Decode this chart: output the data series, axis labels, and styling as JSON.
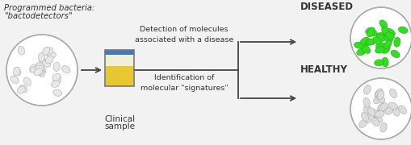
{
  "bg_color": "#f2f2f2",
  "title_line1": "Programmed bacteria:",
  "title_line2": "\"bactodetectors\"",
  "clinical_label1": "Clinical",
  "clinical_label2": "sample",
  "text_upper": "Detection of molecules\nassociated with a disease",
  "text_lower": "Identification of\nmolecular \"signatures\"",
  "label_diseased": "DISEASED",
  "label_healthy": "HEALTHY",
  "arrow_color": "#444444",
  "text_color": "#333333",
  "diseased_color": "#33dd22",
  "healthy_color": "#dddddd",
  "bacteria_color": "#e8e8e8",
  "bacteria_ec": "#aaaaaa",
  "urine_yellow": "#e8c830",
  "urine_white": "#f0f0d8",
  "cup_blue": "#4477bb",
  "cup_border": "#777777",
  "white": "#ffffff"
}
